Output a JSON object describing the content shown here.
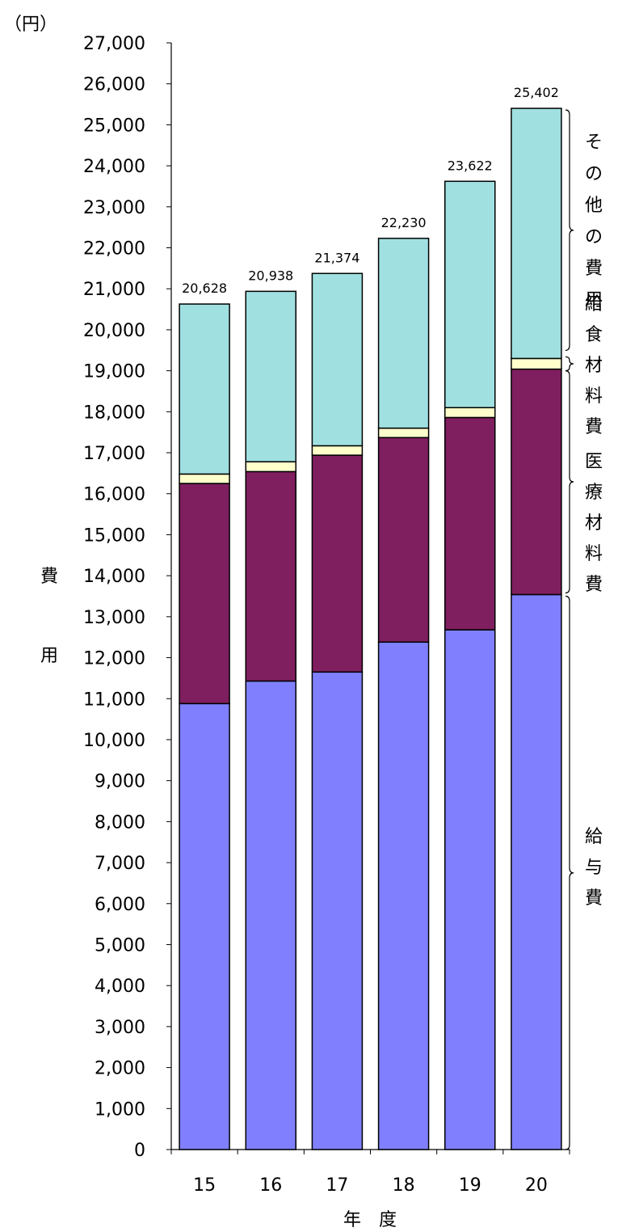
{
  "chart_data": {
    "type": "bar",
    "stacked": true,
    "unit": "（円）",
    "ylabel": "費用",
    "xlabel": "年　度",
    "ylim": [
      0,
      27000
    ],
    "ytick_step": 1000,
    "y_ticks": [
      "0",
      "1,000",
      "2,000",
      "3,000",
      "4,000",
      "5,000",
      "6,000",
      "7,000",
      "8,000",
      "9,000",
      "10,000",
      "11,000",
      "12,000",
      "13,000",
      "14,000",
      "15,000",
      "16,000",
      "17,000",
      "18,000",
      "19,000",
      "20,000",
      "21,000",
      "22,000",
      "23,000",
      "24,000",
      "25,000",
      "26,000",
      "27,000"
    ],
    "categories": [
      "15",
      "16",
      "17",
      "18",
      "19",
      "20"
    ],
    "series": [
      {
        "name": "給与費",
        "color": "#8080ff",
        "values": [
          10880,
          11430,
          11650,
          12380,
          12680,
          13540
        ]
      },
      {
        "name": "医療材料費",
        "color": "#7f1f5f",
        "values": [
          5370,
          5110,
          5290,
          4990,
          5180,
          5500
        ]
      },
      {
        "name": "給食材料費",
        "color": "#ffffcc",
        "values": [
          230,
          240,
          230,
          230,
          240,
          260
        ]
      },
      {
        "name": "その他の費用",
        "color": "#a0e0e0",
        "values": [
          4148,
          4158,
          4204,
          4630,
          5522,
          6102
        ]
      }
    ],
    "totals": [
      "20,628",
      "20,938",
      "21,374",
      "22,230",
      "23,622",
      "25,402"
    ],
    "grid": false,
    "legend": "brace labels on right"
  }
}
